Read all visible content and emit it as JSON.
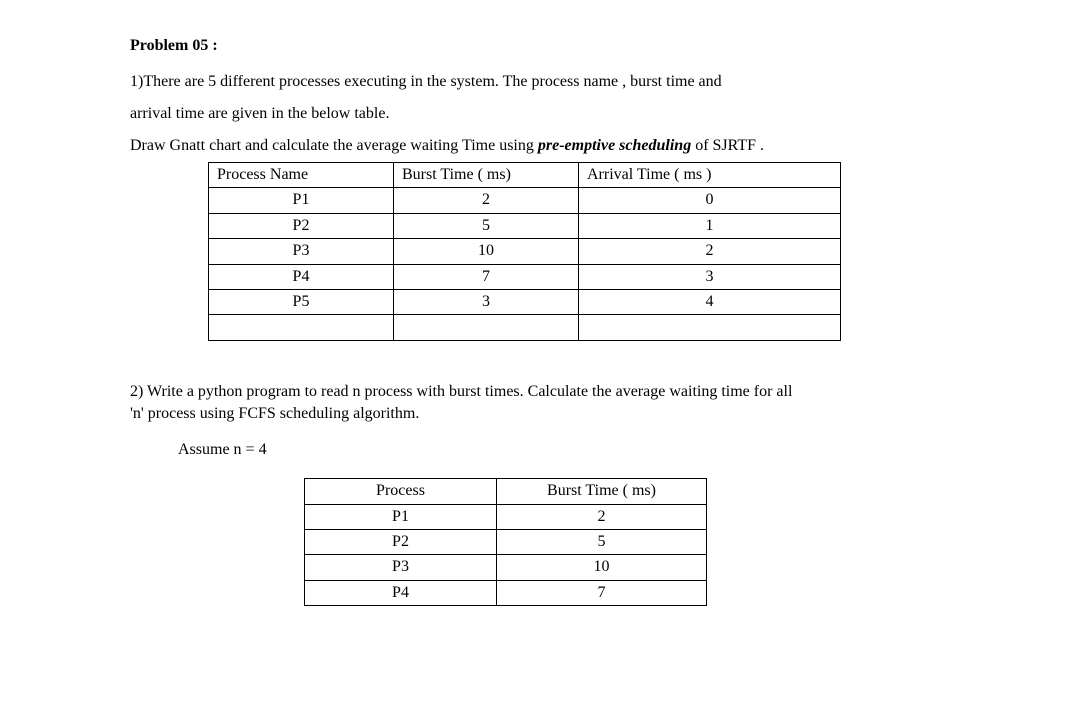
{
  "title": "Problem 05 :",
  "q1": {
    "line1": "1)There are 5 different processes executing in the system. The process name , burst time and",
    "line2": "arrival time are given in the below table.",
    "line3_pre": "Draw Gnatt chart and calculate the average waiting Time using ",
    "line3_em": "pre-emptive  scheduling",
    "line3_post": " of  SJRTF ."
  },
  "table1": {
    "columns": [
      "Process Name",
      "Burst Time ( ms)",
      "Arrival Time ( ms )"
    ],
    "rows": [
      [
        "P1",
        "2",
        "0"
      ],
      [
        "P2",
        "5",
        "1"
      ],
      [
        "P3",
        "10",
        "2"
      ],
      [
        "P4",
        "7",
        "3"
      ],
      [
        "P5",
        "3",
        "4"
      ],
      [
        "",
        "",
        ""
      ]
    ],
    "border_color": "#000000",
    "background": "#ffffff",
    "fontsize": 16
  },
  "q2": {
    "line1": "2) Write a python program to read n process with burst times. Calculate the average waiting time for all",
    "line2": "'n' process using FCFS scheduling algorithm.",
    "assume": "Assume n = 4"
  },
  "table2": {
    "columns": [
      "Process",
      "Burst Time ( ms)"
    ],
    "rows": [
      [
        "P1",
        "2"
      ],
      [
        "P2",
        "5"
      ],
      [
        "P3",
        "10"
      ],
      [
        "P4",
        "7"
      ]
    ],
    "border_color": "#000000",
    "background": "#ffffff",
    "fontsize": 16
  },
  "colors": {
    "text": "#000000",
    "background": "#ffffff"
  },
  "typography": {
    "font_family": "Times New Roman",
    "body_fontsize": 16,
    "title_weight": "bold"
  }
}
